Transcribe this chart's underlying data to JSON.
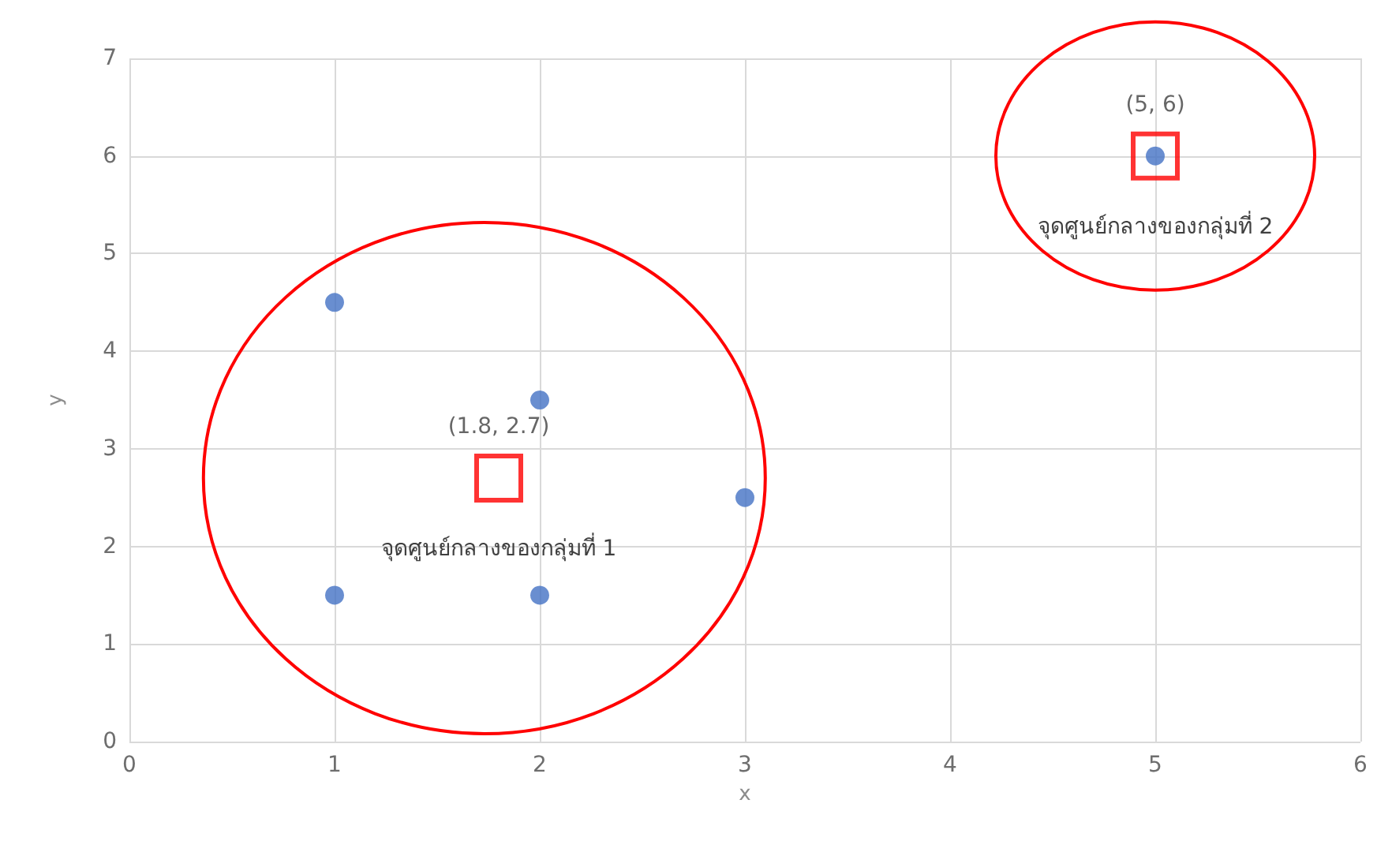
{
  "chart_data": {
    "type": "scatter",
    "xlabel": "x",
    "ylabel": "y",
    "xlim": [
      0,
      6
    ],
    "ylim": [
      0,
      7
    ],
    "xticks": [
      0,
      1,
      2,
      3,
      4,
      5,
      6
    ],
    "yticks": [
      0,
      1,
      2,
      3,
      4,
      5,
      6,
      7
    ],
    "grid": true,
    "marker": "circle",
    "series": [
      {
        "color": "#4472c4",
        "x": [
          1,
          2,
          3,
          1,
          2,
          5
        ],
        "values": [
          4.5,
          3.5,
          2.5,
          1.5,
          1.5,
          6
        ]
      },
      {
        "type": "scatter",
        "marker": "square",
        "color": "#ff0000",
        "x": [
          1.8,
          5
        ],
        "values": [
          2.7,
          6
        ],
        "value_labels": [
          "(1.8, 2.7)",
          "(5, 6)"
        ]
      }
    ],
    "annotations": [
      {
        "text": "จุดศูนย์กลางของกลุ่มที่ 1",
        "x": 1.8,
        "y": 2.7
      },
      {
        "text": "จุดศูนย์กลางของกลุ่มที่ 2",
        "x": 5,
        "y": 6
      }
    ]
  }
}
